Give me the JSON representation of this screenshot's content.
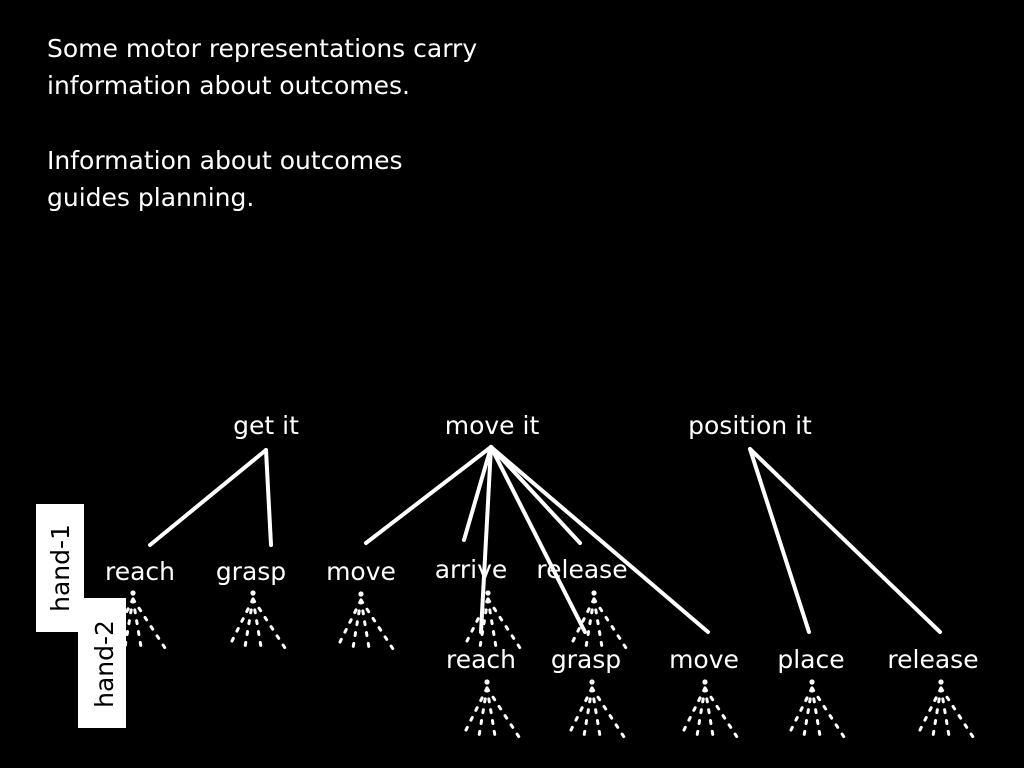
{
  "paragraphs": [
    {
      "line1": "Some motor representations carry",
      "line2": "information about outcomes."
    },
    {
      "line1": "Information about outcomes",
      "line2": "guides planning."
    }
  ],
  "tree": {
    "goals": {
      "get": "get it",
      "move": "move it",
      "position": "position it"
    },
    "hand1": {
      "tag": "hand-1",
      "reach": "reach",
      "grasp": "grasp",
      "move": "move",
      "arrive": "arrive",
      "release": "release"
    },
    "hand2": {
      "tag": "hand-2",
      "reach": "reach",
      "grasp": "grasp",
      "move": "move",
      "place": "place",
      "release": "release"
    }
  }
}
